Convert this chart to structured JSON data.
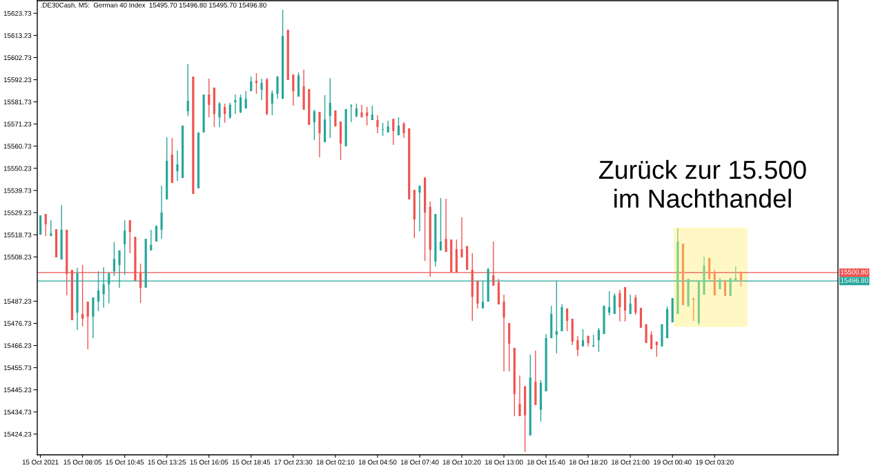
{
  "chart_data": {
    "type": "candlestick",
    "title": ".DE30Cash, M5:  German 40 Index  15495.70 15496.80 15495.70 15496.80",
    "categories": [
      "15 Oct 2021",
      null,
      null,
      null,
      null,
      null,
      null,
      null,
      "15 Oct 08:05",
      null,
      null,
      null,
      null,
      null,
      null,
      null,
      "15 Oct 10:45",
      null,
      null,
      null,
      null,
      null,
      null,
      null,
      "15 Oct 13:25",
      null,
      null,
      null,
      null,
      null,
      null,
      null,
      "15 Oct 16:05",
      null,
      null,
      null,
      null,
      null,
      null,
      null,
      "15 Oct 18:45",
      null,
      null,
      null,
      null,
      null,
      null,
      null,
      "17 Oct 23:30",
      null,
      null,
      null,
      null,
      null,
      null,
      null,
      "18 Oct 02:10",
      null,
      null,
      null,
      null,
      null,
      null,
      null,
      "18 Oct 04:50",
      null,
      null,
      null,
      null,
      null,
      null,
      null,
      "18 Oct 07:40",
      null,
      null,
      null,
      null,
      null,
      null,
      null,
      "18 Oct 10:20",
      null,
      null,
      null,
      null,
      null,
      null,
      null,
      "18 Oct 13:00",
      null,
      null,
      null,
      null,
      null,
      null,
      null,
      "18 Oct 15:40",
      null,
      null,
      null,
      null,
      null,
      null,
      null,
      "18 Oct 18:20",
      null,
      null,
      null,
      null,
      null,
      null,
      null,
      "18 Oct 21:00",
      null,
      null,
      null,
      null,
      null,
      null,
      null,
      "19 Oct 00:40",
      null,
      null,
      null,
      null,
      null,
      null,
      null,
      "19 Oct 03:20",
      null,
      null,
      null,
      null,
      null
    ],
    "ohlc": [
      [
        15518.8,
        15527.9,
        15518.8,
        15527.9
      ],
      [
        15528.6,
        15528.6,
        15518.1,
        15523.7
      ],
      [
        15518.1,
        15525.6,
        15518.1,
        15519.4
      ],
      [
        15521.4,
        15521.4,
        15508.0,
        15508.0
      ],
      [
        15507.0,
        15532.8,
        15507.0,
        15521.1
      ],
      [
        15521.1,
        15521.1,
        15490.0,
        15500.1
      ],
      [
        15502.1,
        15502.1,
        15478.2,
        15478.2
      ],
      [
        15481.8,
        15503.1,
        15473.6,
        15500.5
      ],
      [
        15481.2,
        15504.4,
        15475.3,
        15478.9
      ],
      [
        15487.0,
        15487.0,
        15464.5,
        15479.9
      ],
      [
        15479.9,
        15489.0,
        15469.7,
        15489.0
      ],
      [
        15487.0,
        15501.4,
        15482.5,
        15492.3
      ],
      [
        15490.6,
        15503.4,
        15484.1,
        15495.2
      ],
      [
        15495.2,
        15500.5,
        15486.1,
        15500.5
      ],
      [
        15501.4,
        15515.2,
        15499.2,
        15507.3
      ],
      [
        15504.4,
        15511.3,
        15493.6,
        15511.3
      ],
      [
        15514.2,
        15525.6,
        15499.8,
        15520.7
      ],
      [
        15525.6,
        15525.6,
        15510.0,
        15520.1
      ],
      [
        15517.8,
        15517.8,
        15496.9,
        15496.9
      ],
      [
        15500.5,
        15505.0,
        15486.4,
        15493.6
      ],
      [
        15493.6,
        15516.8,
        15493.6,
        15516.8
      ],
      [
        15511.3,
        15521.1,
        15511.3,
        15513.9
      ],
      [
        15515.5,
        15523.0,
        15515.5,
        15523.0
      ],
      [
        15521.1,
        15542.0,
        15516.8,
        15529.3
      ],
      [
        15535.5,
        15564.9,
        15535.5,
        15553.8
      ],
      [
        15556.7,
        15564.6,
        15543.3,
        15543.3
      ],
      [
        15548.9,
        15558.7,
        15544.3,
        15552.1
      ],
      [
        15545.6,
        15570.5,
        15545.6,
        15570.5
      ],
      [
        15577.3,
        15599.6,
        15575.0,
        15582.2
      ],
      [
        15593.7,
        15593.7,
        15538.1,
        15538.1
      ],
      [
        15540.7,
        15567.2,
        15540.7,
        15567.2
      ],
      [
        15567.2,
        15585.2,
        15567.2,
        15585.2
      ],
      [
        15585.2,
        15592.7,
        15574.4,
        15580.3
      ],
      [
        15588.5,
        15588.5,
        15569.8,
        15576.0
      ],
      [
        15574.4,
        15581.6,
        15569.8,
        15580.9
      ],
      [
        15579.3,
        15580.9,
        15571.8,
        15576.0
      ],
      [
        15574.4,
        15581.3,
        15573.7,
        15580.3
      ],
      [
        15581.6,
        15585.2,
        15576.0,
        15582.6
      ],
      [
        15576.7,
        15585.2,
        15576.4,
        15583.9
      ],
      [
        15578.6,
        15586.8,
        15578.6,
        15583.2
      ],
      [
        15586.8,
        15593.7,
        15586.8,
        15591.4
      ],
      [
        15591.7,
        15595.3,
        15585.5,
        15590.7
      ],
      [
        15587.5,
        15592.7,
        15582.6,
        15590.7
      ],
      [
        15592.4,
        15593.0,
        15575.4,
        15576.0
      ],
      [
        15580.9,
        15587.2,
        15575.4,
        15585.8
      ],
      [
        15585.5,
        15594.0,
        15583.2,
        15593.7
      ],
      [
        15583.2,
        15625.4,
        15583.2,
        15613.0
      ],
      [
        15615.9,
        15615.9,
        15592.1,
        15592.1
      ],
      [
        15594.7,
        15594.7,
        15580.0,
        15586.8
      ],
      [
        15584.2,
        15595.7,
        15584.2,
        15594.3
      ],
      [
        15589.1,
        15597.0,
        15578.0,
        15578.0
      ],
      [
        15587.8,
        15587.8,
        15570.8,
        15570.8
      ],
      [
        15572.1,
        15578.0,
        15563.6,
        15577.3
      ],
      [
        15577.0,
        15577.0,
        15555.4,
        15566.9
      ],
      [
        15562.6,
        15584.9,
        15562.6,
        15573.4
      ],
      [
        15575.0,
        15593.0,
        15564.6,
        15581.3
      ],
      [
        15577.7,
        15577.7,
        15570.1,
        15570.1
      ],
      [
        15572.4,
        15572.4,
        15554.1,
        15562.0
      ],
      [
        15560.7,
        15578.3,
        15560.7,
        15578.3
      ],
      [
        15579.6,
        15580.6,
        15572.1,
        15580.0
      ],
      [
        15575.0,
        15580.9,
        15574.4,
        15578.6
      ],
      [
        15576.7,
        15580.3,
        15574.4,
        15574.4
      ],
      [
        15576.7,
        15579.3,
        15570.5,
        15575.0
      ],
      [
        15573.1,
        15580.0,
        15573.1,
        15575.7
      ],
      [
        15573.1,
        15575.4,
        15566.9,
        15569.8
      ],
      [
        15568.5,
        15571.8,
        15565.6,
        15568.8
      ],
      [
        15567.2,
        15572.8,
        15567.2,
        15570.1
      ],
      [
        15573.7,
        15573.7,
        15561.3,
        15567.9
      ],
      [
        15565.9,
        15574.4,
        15565.9,
        15570.5
      ],
      [
        15571.4,
        15572.1,
        15564.6,
        15566.9
      ],
      [
        15569.2,
        15569.2,
        15535.5,
        15535.5
      ],
      [
        15540.0,
        15540.0,
        15517.1,
        15526.0
      ],
      [
        15538.7,
        15542.0,
        15520.4,
        15542.0
      ],
      [
        15545.9,
        15545.9,
        15506.3,
        15529.3
      ],
      [
        15531.9,
        15534.5,
        15498.8,
        15511.6
      ],
      [
        15506.0,
        15528.6,
        15503.7,
        15528.6
      ],
      [
        15511.3,
        15536.1,
        15511.3,
        15515.5
      ],
      [
        15516.8,
        15535.8,
        15510.6,
        15510.6
      ],
      [
        15516.5,
        15516.5,
        15500.8,
        15500.8
      ],
      [
        15511.9,
        15516.5,
        15500.8,
        15500.8
      ],
      [
        15511.9,
        15527.0,
        15508.0,
        15508.0
      ],
      [
        15513.2,
        15513.5,
        15502.1,
        15502.1
      ],
      [
        15502.1,
        15510.0,
        15477.9,
        15489.3
      ],
      [
        15496.9,
        15496.9,
        15483.8,
        15486.1
      ],
      [
        15483.8,
        15496.9,
        15483.8,
        15487.0
      ],
      [
        15487.0,
        15503.1,
        15487.0,
        15502.4
      ],
      [
        15499.5,
        15515.5,
        15494.6,
        15494.6
      ],
      [
        15496.2,
        15497.8,
        15485.7,
        15485.7
      ],
      [
        15487.0,
        15490.3,
        15454.0,
        15479.5
      ],
      [
        15476.9,
        15476.9,
        15454.0,
        15467.1
      ],
      [
        15465.1,
        15465.1,
        15432.7,
        15443.2
      ],
      [
        15438.6,
        15452.0,
        15432.7,
        15432.7
      ],
      [
        15446.8,
        15447.1,
        15415.7,
        15433.1
      ],
      [
        15423.6,
        15461.9,
        15423.6,
        15451.1
      ],
      [
        15449.1,
        15463.8,
        15438.0,
        15438.0
      ],
      [
        15435.7,
        15449.8,
        15430.1,
        15448.5
      ],
      [
        15444.5,
        15471.7,
        15444.5,
        15469.7
      ],
      [
        15469.7,
        15485.1,
        15469.7,
        15481.2
      ],
      [
        15471.3,
        15496.9,
        15462.5,
        15473.0
      ],
      [
        15473.0,
        15485.7,
        15473.0,
        15484.4
      ],
      [
        15483.8,
        15483.8,
        15473.0,
        15477.9
      ],
      [
        15478.9,
        15478.9,
        15466.4,
        15468.1
      ],
      [
        15468.7,
        15470.7,
        15461.2,
        15464.2
      ],
      [
        15465.8,
        15474.0,
        15465.8,
        15468.7
      ],
      [
        15470.7,
        15471.0,
        15465.8,
        15467.4
      ],
      [
        15465.8,
        15471.3,
        15465.5,
        15466.4
      ],
      [
        15468.7,
        15474.6,
        15463.2,
        15473.6
      ],
      [
        15471.7,
        15485.1,
        15471.7,
        15485.1
      ],
      [
        15481.8,
        15492.0,
        15480.5,
        15484.4
      ],
      [
        15481.2,
        15491.0,
        15481.2,
        15490.0
      ],
      [
        15491.0,
        15492.6,
        15477.6,
        15484.4
      ],
      [
        15493.9,
        15493.9,
        15477.6,
        15482.8
      ],
      [
        15481.2,
        15490.3,
        15481.2,
        15486.1
      ],
      [
        15489.0,
        15490.3,
        15480.8,
        15481.8
      ],
      [
        15484.1,
        15484.1,
        15474.6,
        15474.6
      ],
      [
        15476.3,
        15476.3,
        15467.4,
        15467.4
      ],
      [
        15471.3,
        15473.0,
        15464.5,
        15464.5
      ],
      [
        15468.1,
        15468.1,
        15460.9,
        15466.4
      ],
      [
        15465.8,
        15476.3,
        15465.8,
        15476.3
      ],
      [
        15469.7,
        15484.8,
        15469.7,
        15483.5
      ],
      [
        15477.2,
        15488.7,
        15477.2,
        15488.7
      ],
      [
        15481.2,
        15521.7,
        15481.2,
        15515.5
      ],
      [
        15514.5,
        15514.5,
        15485.4,
        15485.4
      ],
      [
        15484.8,
        15497.8,
        15484.8,
        15497.8
      ],
      [
        15488.7,
        15488.7,
        15477.9,
        15488.0
      ],
      [
        15476.9,
        15497.2,
        15475.9,
        15497.2
      ],
      [
        15490.3,
        15508.3,
        15490.3,
        15504.1
      ],
      [
        15507.7,
        15507.7,
        15497.5,
        15497.8
      ],
      [
        15500.8,
        15502.1,
        15490.0,
        15490.0
      ],
      [
        15492.9,
        15498.5,
        15492.9,
        15497.5
      ],
      [
        15497.2,
        15497.5,
        15489.7,
        15489.7
      ],
      [
        15489.7,
        15498.2,
        15489.7,
        15498.2
      ],
      [
        15496.5,
        15503.7,
        15496.5,
        15498.2
      ],
      [
        15500.8,
        15501.4,
        15494.2,
        15496.8
      ]
    ],
    "colors": [
      "#26a69a",
      "#ef5350",
      "#26a69a",
      "#ef5350",
      "#26a69a",
      "#ef5350",
      "#ef5350",
      "#26a69a",
      "#ef5350",
      "#ef5350",
      "#26a69a",
      "#26a69a",
      "#26a69a",
      "#26a69a",
      "#26a69a",
      "#26a69a",
      "#26a69a",
      "#ef5350",
      "#ef5350",
      "#ef5350",
      "#26a69a",
      "#26a69a",
      "#26a69a",
      "#26a69a",
      "#26a69a",
      "#ef5350",
      "#26a69a",
      "#26a69a",
      "#26a69a",
      "#ef5350",
      "#26a69a",
      "#26a69a",
      "#ef5350",
      "#ef5350",
      "#26a69a",
      "#ef5350",
      "#26a69a",
      "#26a69a",
      "#26a69a",
      "#26a69a",
      "#26a69a",
      "#ef5350",
      "#26a69a",
      "#ef5350",
      "#26a69a",
      "#26a69a",
      "#26a69a",
      "#ef5350",
      "#ef5350",
      "#26a69a",
      "#ef5350",
      "#ef5350",
      "#26a69a",
      "#ef5350",
      "#26a69a",
      "#26a69a",
      "#ef5350",
      "#ef5350",
      "#26a69a",
      "#26a69a",
      "#26a69a",
      "#ef5350",
      "#ef5350",
      "#26a69a",
      "#ef5350",
      "#26a69a",
      "#26a69a",
      "#ef5350",
      "#26a69a",
      "#ef5350",
      "#ef5350",
      "#ef5350",
      "#26a69a",
      "#ef5350",
      "#ef5350",
      "#26a69a",
      "#26a69a",
      "#ef5350",
      "#ef5350",
      "#ef5350",
      "#ef5350",
      "#ef5350",
      "#ef5350",
      "#ef5350",
      "#26a69a",
      "#26a69a",
      "#ef5350",
      "#ef5350",
      "#ef5350",
      "#ef5350",
      "#ef5350",
      "#ef5350",
      "#ef5350",
      "#26a69a",
      "#ef5350",
      "#26a69a",
      "#26a69a",
      "#26a69a",
      "#26a69a",
      "#26a69a",
      "#ef5350",
      "#ef5350",
      "#ef5350",
      "#26a69a",
      "#ef5350",
      "#26a69a",
      "#26a69a",
      "#26a69a",
      "#26a69a",
      "#26a69a",
      "#ef5350",
      "#ef5350",
      "#26a69a",
      "#ef5350",
      "#ef5350",
      "#ef5350",
      "#ef5350",
      "#ef5350",
      "#26a69a",
      "#26a69a",
      "#26a69a",
      "#7fd08a",
      "#f8995c",
      "#7fd08a",
      "#f8995c",
      "#7fd08a",
      "#7fd08a",
      "#f8995c",
      "#f8995c",
      "#7fd08a",
      "#f8995c",
      "#7fd08a",
      "#7fd08a",
      "#f8995c"
    ],
    "ylim": [
      15414.4,
      15629.7
    ],
    "yticks": [
      15623.73,
      15613.23,
      15602.73,
      15592.23,
      15581.73,
      15571.23,
      15560.73,
      15550.23,
      15539.73,
      15529.23,
      15518.73,
      15508.23,
      15487.23,
      15476.73,
      15466.23,
      15455.73,
      15445.23,
      15434.73,
      15424.23
    ],
    "ref_lines": [
      {
        "axis": "y",
        "value": 15500.8,
        "label": "15500.80",
        "color": "#ef5350"
      },
      {
        "axis": "y",
        "value": 15496.8,
        "label": "15496.80",
        "color": "#26a69a"
      }
    ],
    "annotations": [
      "Zurück zur 15.500\nim Nachthandel"
    ]
  }
}
